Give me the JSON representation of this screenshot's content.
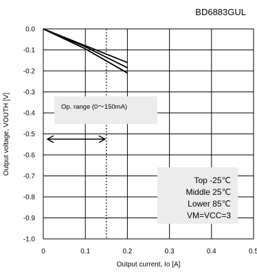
{
  "chart_data": {
    "type": "line",
    "title": "BD6883GUL",
    "xlabel": "Output current, Io [A]",
    "ylabel": "Output voltage, VOUTH [V]",
    "xlim": [
      0,
      0.5
    ],
    "ylim": [
      -1.0,
      0.0
    ],
    "x_ticks": [
      "0",
      "0.1",
      "0.2",
      "0.3",
      "0.4",
      "0.5"
    ],
    "y_ticks": [
      "0.0",
      "-0.1",
      "-0.2",
      "-0.3",
      "-0.4",
      "-0.5",
      "-0.6",
      "-0.7",
      "-0.8",
      "-0.9",
      "-1.0"
    ],
    "grid": true,
    "series": [
      {
        "name": "Top -25℃",
        "x": [
          0,
          0.1,
          0.2
        ],
        "y": [
          0,
          -0.08,
          -0.16
        ]
      },
      {
        "name": "Middle 25℃",
        "x": [
          0,
          0.1,
          0.2
        ],
        "y": [
          0,
          -0.085,
          -0.185
        ]
      },
      {
        "name": "Lower 85℃",
        "x": [
          0,
          0.1,
          0.2
        ],
        "y": [
          0,
          -0.095,
          -0.21
        ]
      }
    ],
    "op_range_limit": 0.15,
    "annotations": {
      "op_range": "Op. range (0〜150mA)",
      "legend_lines": [
        "Top -25℃",
        "Middle 25℃",
        "Lower 85℃",
        "VM=VCC=3"
      ]
    },
    "legend_placement": "bottom-right"
  }
}
